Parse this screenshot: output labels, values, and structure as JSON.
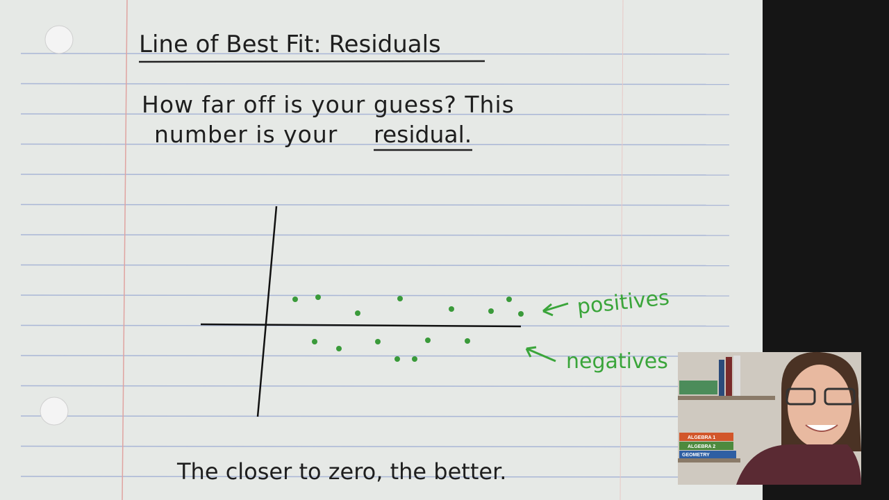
{
  "title": "Line of Best Fit: Residuals",
  "body": {
    "line1": "How far off is your guess? This",
    "line2": "number is your",
    "emphasis": "residual."
  },
  "labels": {
    "positives": "positives",
    "negatives": "negatives"
  },
  "footer": "The closer to zero, the better.",
  "webcam": {
    "books": [
      "ALGEBRA 1",
      "ALGEBRA 2",
      "GEOMETRY"
    ]
  }
}
